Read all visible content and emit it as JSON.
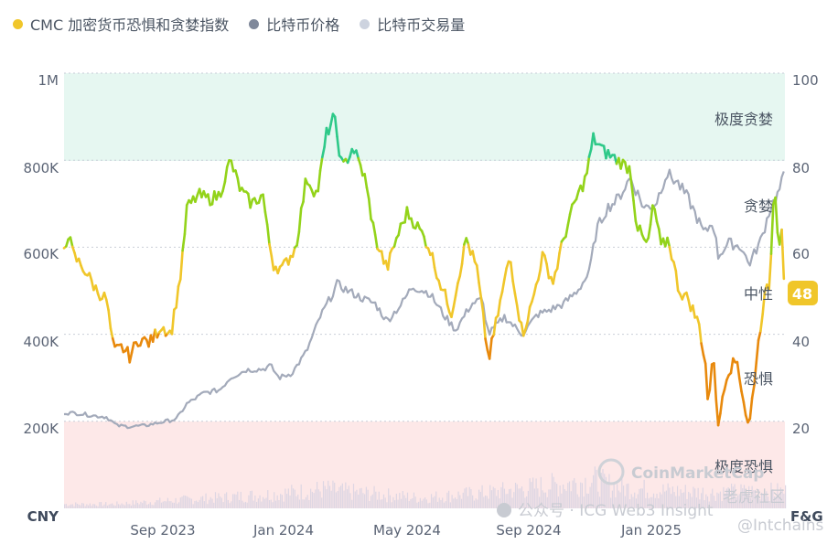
{
  "legend": [
    {
      "label": "CMC 加密货币恐惧和贪婪指数",
      "color": "#f0c62a"
    },
    {
      "label": "比特币价格",
      "color": "#7f889a"
    },
    {
      "label": "比特币交易量",
      "color": "#cdd3df"
    }
  ],
  "axes": {
    "left_unit": "CNY",
    "right_unit": "F&G",
    "left_ticks": [
      "200K",
      "400K",
      "600K",
      "800K",
      "1M"
    ],
    "right_ticks": [
      "20",
      "40",
      "60",
      "80",
      "100"
    ],
    "x_ticks": [
      "Sep 2023",
      "Jan 2024",
      "May 2024",
      "Sep 2024",
      "Jan 2025"
    ]
  },
  "zones": {
    "extreme_greed": "极度贪婪",
    "greed": "贪婪",
    "neutral": "中性",
    "fear": "恐惧",
    "extreme_fear": "极度恐惧"
  },
  "current_value": "48",
  "watermarks": {
    "coinmarketcap": "CoinMarketCap",
    "wechat": "公众号 · ICG Web3 Insight",
    "tiger": "老虎社区",
    "handle": "@Intchains"
  },
  "colors": {
    "extreme_fear_zone": "#fde8e8",
    "extreme_greed_zone": "#e6f7f1",
    "price_line": "#a3aaba",
    "volume_bars": "#ddd6e3",
    "fg_extreme_fear": "#e0364d",
    "fg_fear": "#e8890c",
    "fg_neutral": "#f0c62a",
    "fg_greed": "#93d31a",
    "fg_extreme_greed": "#2ec989"
  },
  "chart_data": {
    "type": "line",
    "x_range": [
      "2023-07-01",
      "2025-05-12"
    ],
    "ylim_left": [
      0,
      1000000
    ],
    "ylim_right": [
      0,
      100
    ],
    "series": [
      {
        "name": "比特币价格",
        "axis": "left",
        "points": [
          [
            "2023-07-01",
            220000
          ],
          [
            "2023-07-15",
            218000
          ],
          [
            "2023-08-01",
            212000
          ],
          [
            "2023-08-10",
            210000
          ],
          [
            "2023-08-20",
            190000
          ],
          [
            "2023-09-01",
            188000
          ],
          [
            "2023-09-15",
            190000
          ],
          [
            "2023-10-01",
            198000
          ],
          [
            "2023-10-15",
            205000
          ],
          [
            "2023-10-25",
            240000
          ],
          [
            "2023-11-10",
            265000
          ],
          [
            "2023-11-25",
            272000
          ],
          [
            "2023-12-05",
            300000
          ],
          [
            "2023-12-20",
            318000
          ],
          [
            "2024-01-05",
            320000
          ],
          [
            "2024-01-12",
            328000
          ],
          [
            "2024-01-20",
            300000
          ],
          [
            "2024-02-01",
            310000
          ],
          [
            "2024-02-15",
            360000
          ],
          [
            "2024-02-28",
            440000
          ],
          [
            "2024-03-10",
            490000
          ],
          [
            "2024-03-15",
            515000
          ],
          [
            "2024-03-25",
            500000
          ],
          [
            "2024-04-10",
            480000
          ],
          [
            "2024-04-20",
            470000
          ],
          [
            "2024-05-01",
            430000
          ],
          [
            "2024-05-15",
            470000
          ],
          [
            "2024-05-25",
            510000
          ],
          [
            "2024-06-10",
            495000
          ],
          [
            "2024-06-25",
            440000
          ],
          [
            "2024-07-05",
            410000
          ],
          [
            "2024-07-20",
            470000
          ],
          [
            "2024-07-30",
            480000
          ],
          [
            "2024-08-05",
            400000
          ],
          [
            "2024-08-20",
            440000
          ],
          [
            "2024-09-06",
            400000
          ],
          [
            "2024-09-20",
            445000
          ],
          [
            "2024-10-01",
            455000
          ],
          [
            "2024-10-15",
            470000
          ],
          [
            "2024-10-28",
            500000
          ],
          [
            "2024-11-08",
            540000
          ],
          [
            "2024-11-15",
            640000
          ],
          [
            "2024-11-25",
            690000
          ],
          [
            "2024-12-05",
            710000
          ],
          [
            "2024-12-17",
            760000
          ],
          [
            "2024-12-30",
            690000
          ],
          [
            "2025-01-10",
            700000
          ],
          [
            "2025-01-20",
            770000
          ],
          [
            "2025-01-30",
            750000
          ],
          [
            "2025-02-10",
            710000
          ],
          [
            "2025-02-25",
            630000
          ],
          [
            "2025-03-05",
            660000
          ],
          [
            "2025-03-10",
            580000
          ],
          [
            "2025-03-20",
            610000
          ],
          [
            "2025-04-01",
            600000
          ],
          [
            "2025-04-08",
            560000
          ],
          [
            "2025-04-20",
            620000
          ],
          [
            "2025-04-28",
            690000
          ],
          [
            "2025-05-05",
            720000
          ],
          [
            "2025-05-08",
            740000
          ],
          [
            "2025-05-12",
            770000
          ]
        ]
      },
      {
        "name": "CMC 加密货币恐惧和贪婪指数",
        "axis": "right",
        "points": [
          [
            "2023-07-01",
            60
          ],
          [
            "2023-07-05",
            63
          ],
          [
            "2023-07-10",
            58
          ],
          [
            "2023-07-20",
            55
          ],
          [
            "2023-08-01",
            50
          ],
          [
            "2023-08-10",
            48
          ],
          [
            "2023-08-17",
            36
          ],
          [
            "2023-08-25",
            37
          ],
          [
            "2023-09-01",
            35
          ],
          [
            "2023-09-10",
            39
          ],
          [
            "2023-09-20",
            38
          ],
          [
            "2023-10-01",
            42
          ],
          [
            "2023-10-10",
            40
          ],
          [
            "2023-10-20",
            55
          ],
          [
            "2023-10-25",
            69
          ],
          [
            "2023-11-05",
            72
          ],
          [
            "2023-11-15",
            71
          ],
          [
            "2023-11-25",
            72
          ],
          [
            "2023-12-05",
            80
          ],
          [
            "2023-12-15",
            73
          ],
          [
            "2023-12-25",
            70
          ],
          [
            "2024-01-05",
            72
          ],
          [
            "2024-01-10",
            62
          ],
          [
            "2024-01-15",
            56
          ],
          [
            "2024-01-23",
            55
          ],
          [
            "2024-02-05",
            60
          ],
          [
            "2024-02-15",
            76
          ],
          [
            "2024-02-25",
            72
          ],
          [
            "2024-03-05",
            86
          ],
          [
            "2024-03-12",
            90
          ],
          [
            "2024-03-20",
            78
          ],
          [
            "2024-03-30",
            83
          ],
          [
            "2024-04-10",
            76
          ],
          [
            "2024-04-20",
            62
          ],
          [
            "2024-05-01",
            55
          ],
          [
            "2024-05-10",
            62
          ],
          [
            "2024-05-20",
            68
          ],
          [
            "2024-06-01",
            64
          ],
          [
            "2024-06-10",
            60
          ],
          [
            "2024-06-20",
            52
          ],
          [
            "2024-07-01",
            45
          ],
          [
            "2024-07-15",
            62
          ],
          [
            "2024-07-25",
            55
          ],
          [
            "2024-08-05",
            34
          ],
          [
            "2024-08-15",
            46
          ],
          [
            "2024-08-25",
            58
          ],
          [
            "2024-09-06",
            40
          ],
          [
            "2024-09-15",
            47
          ],
          [
            "2024-09-25",
            58
          ],
          [
            "2024-10-05",
            52
          ],
          [
            "2024-10-15",
            62
          ],
          [
            "2024-10-25",
            70
          ],
          [
            "2024-11-05",
            76
          ],
          [
            "2024-11-12",
            85
          ],
          [
            "2024-11-22",
            82
          ],
          [
            "2024-12-05",
            80
          ],
          [
            "2024-12-17",
            78
          ],
          [
            "2024-12-23",
            65
          ],
          [
            "2025-01-02",
            60
          ],
          [
            "2025-01-08",
            70
          ],
          [
            "2025-01-15",
            60
          ],
          [
            "2025-01-22",
            62
          ],
          [
            "2025-02-01",
            50
          ],
          [
            "2025-02-10",
            48
          ],
          [
            "2025-02-20",
            42
          ],
          [
            "2025-02-26",
            33
          ],
          [
            "2025-03-01",
            22
          ],
          [
            "2025-03-05",
            38
          ],
          [
            "2025-03-10",
            18
          ],
          [
            "2025-03-15",
            28
          ],
          [
            "2025-03-20",
            32
          ],
          [
            "2025-03-28",
            34
          ],
          [
            "2025-04-02",
            26
          ],
          [
            "2025-04-08",
            18
          ],
          [
            "2025-04-15",
            34
          ],
          [
            "2025-04-22",
            48
          ],
          [
            "2025-04-28",
            52
          ],
          [
            "2025-05-02",
            77
          ],
          [
            "2025-05-06",
            60
          ],
          [
            "2025-05-09",
            65
          ],
          [
            "2025-05-12",
            48
          ]
        ]
      },
      {
        "name": "比特币交易量",
        "axis": "left",
        "points": [
          [
            "2023-08-15",
            12000
          ],
          [
            "2023-10-25",
            25000
          ],
          [
            "2024-01-12",
            40000
          ],
          [
            "2024-03-05",
            55000
          ],
          [
            "2024-03-15",
            50000
          ],
          [
            "2024-06-01",
            30000
          ],
          [
            "2024-08-05",
            45000
          ],
          [
            "2024-11-12",
            80000
          ],
          [
            "2024-12-05",
            60000
          ],
          [
            "2025-01-20",
            50000
          ],
          [
            "2025-03-03",
            45000
          ],
          [
            "2025-04-08",
            48000
          ]
        ]
      }
    ]
  }
}
